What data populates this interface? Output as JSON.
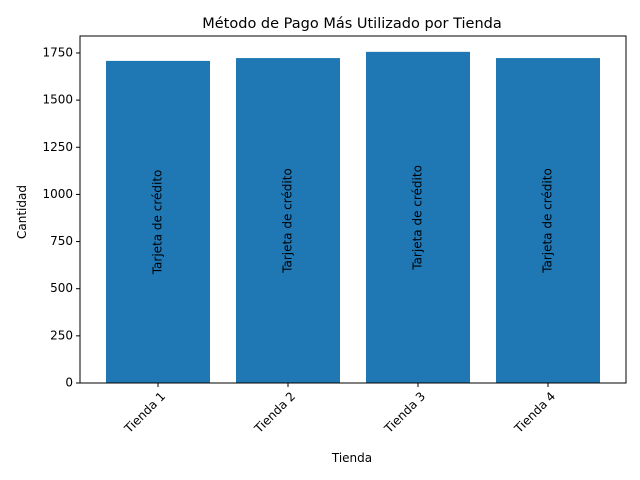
{
  "chart_data": {
    "type": "bar",
    "title": "Método de Pago Más Utilizado por Tienda",
    "xlabel": "Tienda",
    "ylabel": "Cantidad",
    "categories": [
      "Tienda 1",
      "Tienda 2",
      "Tienda 3",
      "Tienda 4"
    ],
    "values": [
      1708,
      1723,
      1756,
      1723
    ],
    "bar_labels": [
      "Tarjeta de crédito",
      "Tarjeta de crédito",
      "Tarjeta de crédito",
      "Tarjeta de crédito"
    ],
    "ylim": [
      0,
      1840
    ],
    "yticks": [
      0,
      250,
      500,
      750,
      1000,
      1250,
      1500,
      1750
    ],
    "bar_color": "#1f77b4",
    "grid": false,
    "legend": false
  }
}
